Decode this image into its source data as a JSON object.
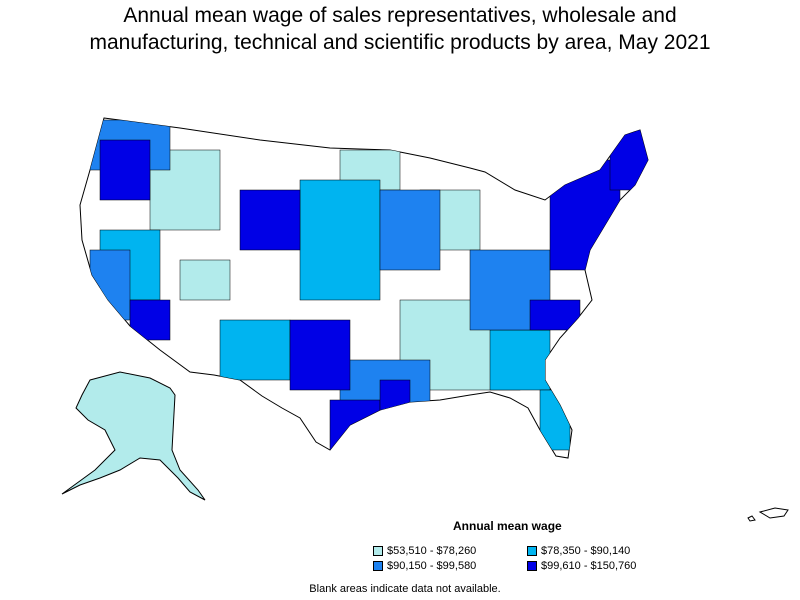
{
  "title_line1": "Annual mean wage of sales representatives, wholesale and",
  "title_line2": "manufacturing, technical and scientific products by area, May 2021",
  "legend": {
    "title": "Annual mean wage",
    "items": [
      {
        "label": "$53,510 - $78,260",
        "color": "#b2ebeb"
      },
      {
        "label": "$78,350 - $90,140",
        "color": "#00b4f0"
      },
      {
        "label": "$90,150 - $99,580",
        "color": "#1e82f0"
      },
      {
        "label": "$99,610 - $150,760",
        "color": "#0000e6"
      }
    ]
  },
  "note": "Blank areas indicate data not available."
}
